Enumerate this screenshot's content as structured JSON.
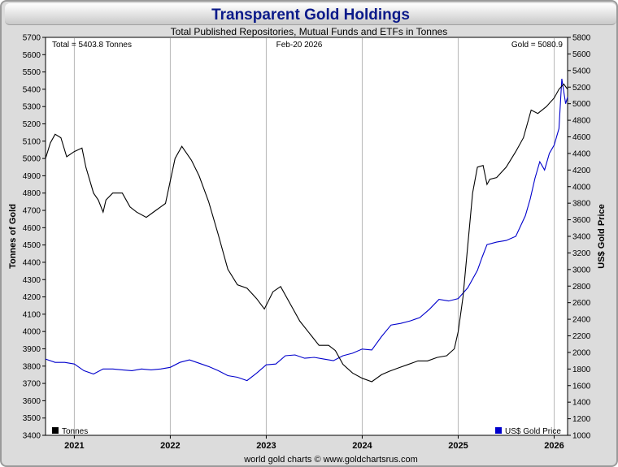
{
  "title": "Transparent Gold Holdings",
  "subtitle": "Total Published Repositories, Mutual Funds and ETFs in Tonnes",
  "date_label": "Feb-20  2026",
  "total_label": "Total = 5403.8 Tonnes",
  "gold_label": "Gold = 5080.9",
  "footer": "world gold charts © www.goldchartsrus.com",
  "colors": {
    "tonnes": "#000000",
    "price": "#0000cc"
  },
  "chart_data": {
    "type": "line",
    "ylabel_left": "Tonnes of Gold",
    "ylabel_right": "US$ Gold Price",
    "x_ticks": [
      "2021",
      "2022",
      "2023",
      "2024",
      "2025",
      "2026"
    ],
    "xlim": [
      2020.7,
      2026.14
    ],
    "ylim_left": [
      3400,
      5700
    ],
    "ylim_right": [
      1000,
      5800
    ],
    "left_ticks": [
      3400,
      3500,
      3600,
      3700,
      3800,
      3900,
      4000,
      4100,
      4200,
      4300,
      4400,
      4500,
      4600,
      4700,
      4800,
      4900,
      5000,
      5100,
      5200,
      5300,
      5400,
      5500,
      5600,
      5700
    ],
    "right_ticks": [
      1000,
      1200,
      1400,
      1600,
      1800,
      2000,
      2200,
      2400,
      2600,
      2800,
      3000,
      3200,
      3400,
      3600,
      3800,
      4000,
      4200,
      4400,
      4600,
      4800,
      5000,
      5200,
      5400,
      5600,
      5800
    ],
    "series": [
      {
        "name": "Tonnes",
        "axis": "left",
        "x": [
          2020.7,
          2020.75,
          2020.8,
          2020.86,
          2020.92,
          2021.0,
          2021.08,
          2021.12,
          2021.2,
          2021.25,
          2021.3,
          2021.33,
          2021.4,
          2021.5,
          2021.58,
          2021.65,
          2021.75,
          2021.85,
          2021.95,
          2022.05,
          2022.12,
          2022.22,
          2022.3,
          2022.4,
          2022.5,
          2022.6,
          2022.7,
          2022.8,
          2022.9,
          2022.98,
          2023.07,
          2023.15,
          2023.25,
          2023.35,
          2023.45,
          2023.55,
          2023.65,
          2023.72,
          2023.8,
          2023.9,
          2024.0,
          2024.1,
          2024.2,
          2024.28,
          2024.38,
          2024.48,
          2024.58,
          2024.68,
          2024.78,
          2024.88,
          2024.96,
          2025.0,
          2025.05,
          2025.1,
          2025.15,
          2025.2,
          2025.26,
          2025.3,
          2025.33,
          2025.4,
          2025.5,
          2025.6,
          2025.68,
          2025.76,
          2025.83,
          2025.92,
          2026.0,
          2026.05,
          2026.1,
          2026.14
        ],
        "values": [
          5000,
          5090,
          5140,
          5120,
          5010,
          5040,
          5060,
          4950,
          4800,
          4760,
          4690,
          4760,
          4800,
          4800,
          4720,
          4690,
          4660,
          4700,
          4740,
          5000,
          5070,
          4990,
          4900,
          4750,
          4560,
          4360,
          4270,
          4250,
          4190,
          4130,
          4230,
          4260,
          4160,
          4060,
          3990,
          3920,
          3920,
          3890,
          3810,
          3760,
          3730,
          3710,
          3750,
          3770,
          3790,
          3810,
          3830,
          3830,
          3850,
          3860,
          3900,
          4000,
          4200,
          4500,
          4800,
          4950,
          4960,
          4850,
          4880,
          4890,
          4950,
          5040,
          5120,
          5280,
          5260,
          5300,
          5350,
          5400,
          5430,
          5400
        ]
      },
      {
        "name": "US$ Gold Price",
        "axis": "right",
        "x": [
          2020.7,
          2020.8,
          2020.9,
          2021.0,
          2021.1,
          2021.2,
          2021.3,
          2021.4,
          2021.5,
          2021.6,
          2021.7,
          2021.8,
          2021.9,
          2022.0,
          2022.1,
          2022.2,
          2022.3,
          2022.4,
          2022.5,
          2022.6,
          2022.7,
          2022.8,
          2022.9,
          2023.0,
          2023.1,
          2023.2,
          2023.3,
          2023.4,
          2023.5,
          2023.6,
          2023.7,
          2023.8,
          2023.9,
          2024.0,
          2024.1,
          2024.2,
          2024.3,
          2024.4,
          2024.5,
          2024.6,
          2024.7,
          2024.8,
          2024.9,
          2025.0,
          2025.1,
          2025.2,
          2025.25,
          2025.3,
          2025.4,
          2025.5,
          2025.6,
          2025.7,
          2025.75,
          2025.8,
          2025.85,
          2025.9,
          2025.95,
          2026.0,
          2026.05,
          2026.08,
          2026.12,
          2026.14
        ],
        "values": [
          1920,
          1880,
          1880,
          1860,
          1780,
          1740,
          1800,
          1800,
          1790,
          1780,
          1800,
          1790,
          1800,
          1820,
          1880,
          1910,
          1870,
          1830,
          1780,
          1720,
          1700,
          1660,
          1750,
          1850,
          1860,
          1960,
          1970,
          1930,
          1940,
          1920,
          1900,
          1960,
          1990,
          2040,
          2030,
          2190,
          2330,
          2350,
          2380,
          2420,
          2520,
          2640,
          2620,
          2650,
          2780,
          2990,
          3150,
          3300,
          3330,
          3350,
          3400,
          3650,
          3850,
          4100,
          4300,
          4200,
          4400,
          4500,
          4700,
          5300,
          5000,
          5080
        ]
      }
    ]
  }
}
